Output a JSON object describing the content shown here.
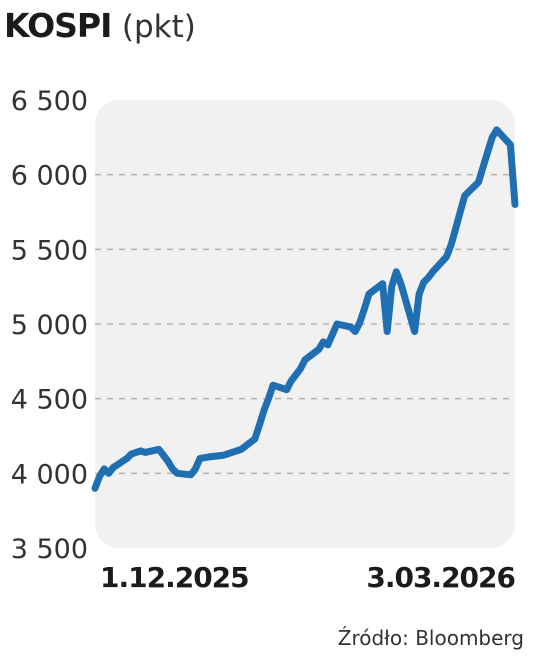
{
  "title": "KOSPI",
  "unit": "(pkt)",
  "source": "Źródło: Bloomberg",
  "chart_data": {
    "type": "line",
    "title": "KOSPI",
    "ylabel": "(pkt)",
    "ylim": [
      3500,
      6500
    ],
    "yticks": [
      3500,
      4000,
      4500,
      5000,
      5500,
      6000,
      6500
    ],
    "ytick_labels": [
      "3 500",
      "4 000",
      "4 500",
      "5 000",
      "5 500",
      "6 000",
      "6 500"
    ],
    "xtick_labels": [
      "1.12.2025",
      "3.03.2026"
    ],
    "xlim": [
      "2025-12-01",
      "2026-03-03"
    ],
    "grid": true,
    "series": [
      {
        "color": "#1f6fb2",
        "x": [
          "2025-12-01",
          "2025-12-02",
          "2025-12-03",
          "2025-12-04",
          "2025-12-05",
          "2025-12-08",
          "2025-12-09",
          "2025-12-10",
          "2025-12-11",
          "2025-12-12",
          "2025-12-15",
          "2025-12-16",
          "2025-12-17",
          "2025-12-18",
          "2025-12-19",
          "2025-12-22",
          "2025-12-23",
          "2025-12-24",
          "2025-12-26",
          "2025-12-29",
          "2025-12-30",
          "2026-01-02",
          "2026-01-05",
          "2026-01-06",
          "2026-01-07",
          "2026-01-08",
          "2026-01-09",
          "2026-01-12",
          "2026-01-13",
          "2026-01-14",
          "2026-01-15",
          "2026-01-16",
          "2026-01-19",
          "2026-01-20",
          "2026-01-21",
          "2026-01-22",
          "2026-01-23",
          "2026-01-26",
          "2026-01-27",
          "2026-01-28",
          "2026-01-29",
          "2026-01-30",
          "2026-02-02",
          "2026-02-03",
          "2026-02-04",
          "2026-02-05",
          "2026-02-06",
          "2026-02-09",
          "2026-02-10",
          "2026-02-11",
          "2026-02-12",
          "2026-02-13",
          "2026-02-16",
          "2026-02-17",
          "2026-02-18",
          "2026-02-19",
          "2026-02-20",
          "2026-02-23",
          "2026-02-24",
          "2026-02-25",
          "2026-02-26",
          "2026-02-27",
          "2026-03-02",
          "2026-03-03"
        ],
        "values": [
          3900,
          3980,
          4030,
          4000,
          4040,
          4100,
          4130,
          4140,
          4150,
          4140,
          4160,
          4120,
          4080,
          4030,
          4000,
          3990,
          4030,
          4100,
          4110,
          4120,
          4130,
          4160,
          4230,
          4320,
          4420,
          4500,
          4590,
          4560,
          4620,
          4660,
          4700,
          4760,
          4830,
          4880,
          4860,
          4930,
          5000,
          4980,
          4950,
          5010,
          5100,
          5200,
          5270,
          4950,
          5250,
          5350,
          5270,
          4950,
          5200,
          5280,
          5310,
          5350,
          5450,
          5530,
          5640,
          5750,
          5860,
          5950,
          6050,
          6150,
          6250,
          6300,
          6200,
          5800
        ]
      }
    ]
  }
}
